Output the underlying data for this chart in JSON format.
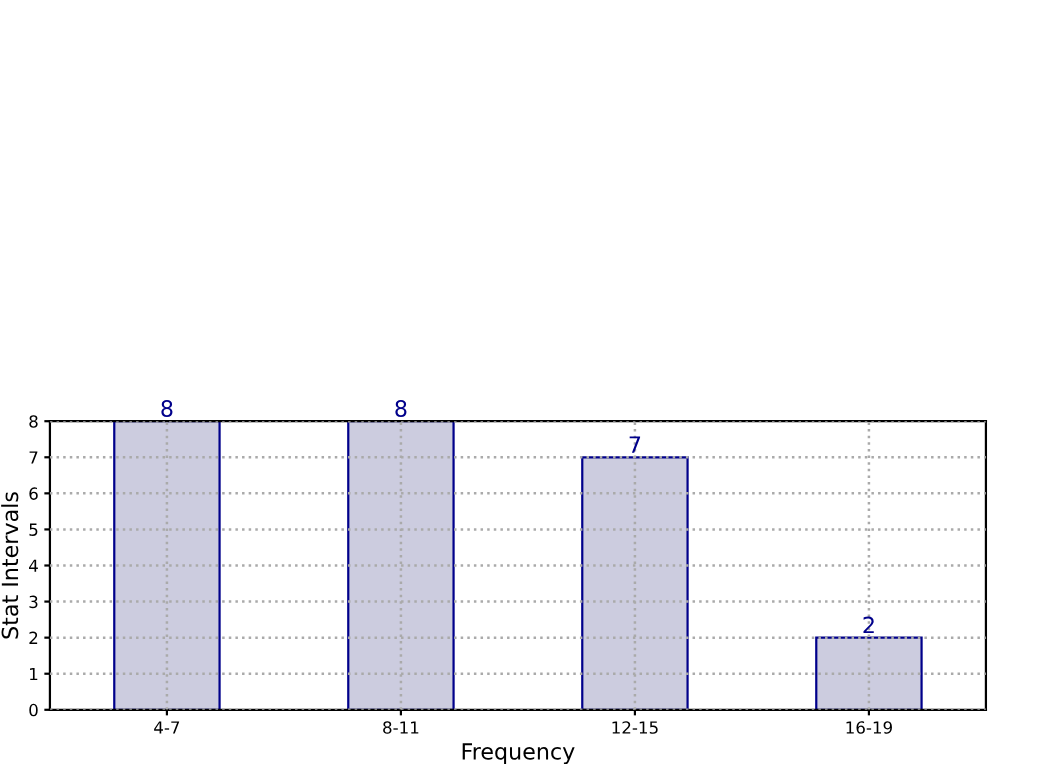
{
  "chart_data": {
    "type": "bar",
    "xlabel": "Frequency",
    "ylabel": "Stat Intervals",
    "categories": [
      "4-7",
      "8-11",
      "12-15",
      "16-19"
    ],
    "values": [
      8,
      8,
      7,
      2
    ],
    "color": "#ccccdf",
    "ylim": [
      0,
      8
    ],
    "yticks": [
      0,
      1,
      2,
      3,
      4,
      5,
      6,
      7,
      8
    ],
    "grid": true,
    "data_labels": true
  }
}
